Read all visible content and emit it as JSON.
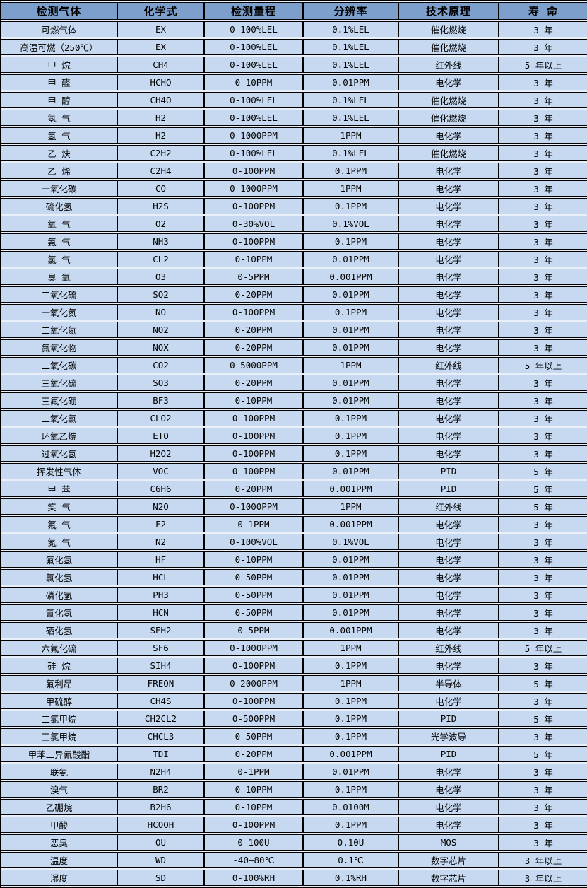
{
  "table": {
    "colors": {
      "header_bg": "#7d9fcc",
      "row_bg": "#c6d9f1",
      "gap_bg": "#e9eff8",
      "border": "#000000"
    },
    "headers": [
      "检测气体",
      "化学式",
      "检测量程",
      "分辨率",
      "技术原理",
      "寿 命"
    ],
    "rows": [
      [
        "可燃气体",
        "EX",
        "0-100%LEL",
        "0.1%LEL",
        "催化燃烧",
        "3 年"
      ],
      [
        "高温可燃（250℃）",
        "EX",
        "0-100%LEL",
        "0.1%LEL",
        "催化燃烧",
        "3 年"
      ],
      [
        "甲 烷",
        "CH4",
        "0-100%LEL",
        "0.1%LEL",
        "红外线",
        "5 年以上"
      ],
      [
        "甲 醛",
        "HCHO",
        "0-10PPM",
        "0.01PPM",
        "电化学",
        "3 年"
      ],
      [
        "甲 醇",
        "CH4O",
        "0-100%LEL",
        "0.1%LEL",
        "催化燃烧",
        "3 年"
      ],
      [
        "氢 气",
        "H2",
        "0-100%LEL",
        "0.1%LEL",
        "催化燃烧",
        "3 年"
      ],
      [
        "氢 气",
        "H2",
        "0-1000PPM",
        "1PPM",
        "电化学",
        "3 年"
      ],
      [
        "乙 炔",
        "C2H2",
        "0-100%LEL",
        "0.1%LEL",
        "催化燃烧",
        "3 年"
      ],
      [
        "乙 烯",
        "C2H4",
        "0-100PPM",
        "0.1PPM",
        "电化学",
        "3 年"
      ],
      [
        "一氧化碳",
        "CO",
        "0-1000PPM",
        "1PPM",
        "电化学",
        "3 年"
      ],
      [
        "硫化氢",
        "H2S",
        "0-100PPM",
        "0.1PPM",
        "电化学",
        "3 年"
      ],
      [
        "氧 气",
        "O2",
        "0-30%VOL",
        "0.1%VOL",
        "电化学",
        "3 年"
      ],
      [
        "氨 气",
        "NH3",
        "0-100PPM",
        "0.1PPM",
        "电化学",
        "3 年"
      ],
      [
        "氯 气",
        "CL2",
        "0-10PPM",
        "0.01PPM",
        "电化学",
        "3 年"
      ],
      [
        "臭 氧",
        "O3",
        "0-5PPM",
        "0.001PPM",
        "电化学",
        "3 年"
      ],
      [
        "二氧化硫",
        "SO2",
        "0-20PPM",
        "0.01PPM",
        "电化学",
        "3 年"
      ],
      [
        "一氧化氮",
        "NO",
        "0-100PPM",
        "0.1PPM",
        "电化学",
        "3 年"
      ],
      [
        "二氧化氮",
        "NO2",
        "0-20PPM",
        "0.01PPM",
        "电化学",
        "3 年"
      ],
      [
        "氮氧化物",
        "NOX",
        "0-20PPM",
        "0.01PPM",
        "电化学",
        "3 年"
      ],
      [
        "二氧化碳",
        "CO2",
        "0-5000PPM",
        "1PPM",
        "红外线",
        "5 年以上"
      ],
      [
        "三氧化硫",
        "SO3",
        "0-20PPM",
        "0.01PPM",
        "电化学",
        "3 年"
      ],
      [
        "三氟化硼",
        "BF3",
        "0-10PPM",
        "0.01PPM",
        "电化学",
        "3 年"
      ],
      [
        "二氧化氯",
        "CLO2",
        "0-100PPM",
        "0.1PPM",
        "电化学",
        "3 年"
      ],
      [
        "环氧乙烷",
        "ETO",
        "0-100PPM",
        "0.1PPM",
        "电化学",
        "3 年"
      ],
      [
        "过氧化氢",
        "H2O2",
        "0-100PPM",
        "0.1PPM",
        "电化学",
        "3 年"
      ],
      [
        "挥发性气体",
        "VOC",
        "0-100PPM",
        "0.01PPM",
        "PID",
        "5 年"
      ],
      [
        "甲 苯",
        "C6H6",
        "0-20PPM",
        "0.001PPM",
        "PID",
        "5 年"
      ],
      [
        "笑 气",
        "N2O",
        "0-1000PPM",
        "1PPM",
        "红外线",
        "5 年"
      ],
      [
        "氟 气",
        "F2",
        "0-1PPM",
        "0.001PPM",
        "电化学",
        "3 年"
      ],
      [
        "氮 气",
        "N2",
        "0-100%VOL",
        "0.1%VOL",
        "电化学",
        "3 年"
      ],
      [
        "氟化氢",
        "HF",
        "0-10PPM",
        "0.01PPM",
        "电化学",
        "3 年"
      ],
      [
        "氯化氢",
        "HCL",
        "0-50PPM",
        "0.01PPM",
        "电化学",
        "3 年"
      ],
      [
        "磷化氢",
        "PH3",
        "0-50PPM",
        "0.01PPM",
        "电化学",
        "3 年"
      ],
      [
        "氰化氢",
        "HCN",
        "0-50PPM",
        "0.01PPM",
        "电化学",
        "3 年"
      ],
      [
        "硒化氢",
        "SEH2",
        "0-5PPM",
        "0.001PPM",
        "电化学",
        "3 年"
      ],
      [
        "六氟化硫",
        "SF6",
        "0-1000PPM",
        "1PPM",
        "红外线",
        "5 年以上"
      ],
      [
        "硅 烷",
        "SIH4",
        "0-100PPM",
        "0.1PPM",
        "电化学",
        "3 年"
      ],
      [
        "氟利昂",
        "FREON",
        "0-2000PPM",
        "1PPM",
        "半导体",
        "5 年"
      ],
      [
        "甲硫醇",
        "CH4S",
        "0-100PPM",
        "0.1PPM",
        "电化学",
        "3 年"
      ],
      [
        "二氯甲烷",
        "CH2CL2",
        "0-500PPM",
        "0.1PPM",
        "PID",
        "5 年"
      ],
      [
        "三氯甲烷",
        "CHCL3",
        "0-50PPM",
        "0.1PPM",
        "光学波导",
        "3 年"
      ],
      [
        "甲苯二异氰酸酯",
        "TDI",
        "0-20PPM",
        "0.001PPM",
        "PID",
        "5 年"
      ],
      [
        "联氨",
        "N2H4",
        "0-1PPM",
        "0.01PPM",
        "电化学",
        "3 年"
      ],
      [
        "溴气",
        "BR2",
        "0-10PPM",
        "0.1PPM",
        "电化学",
        "3 年"
      ],
      [
        "乙硼烷",
        "B2H6",
        "0-10PPM",
        "0.0100M",
        "电化学",
        "3 年"
      ],
      [
        "甲酸",
        "HCOOH",
        "0-100PPM",
        "0.1PPM",
        "电化学",
        "3 年"
      ],
      [
        "恶臭",
        "OU",
        "0-100U",
        "0.10U",
        "MOS",
        "3 年"
      ],
      [
        "温度",
        "WD",
        "-40—80℃",
        "0.1℃",
        "数字芯片",
        "3 年以上"
      ],
      [
        "湿度",
        "SD",
        "0-100%RH",
        "0.1%RH",
        "数字芯片",
        "3 年以上"
      ]
    ]
  }
}
